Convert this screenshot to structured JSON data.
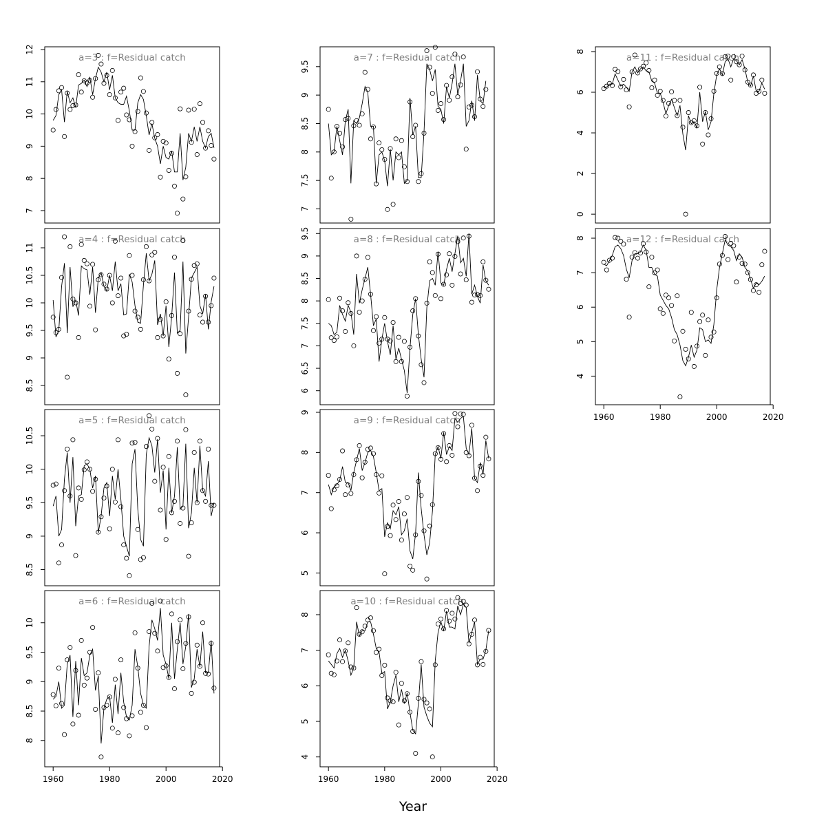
{
  "figure": {
    "xlabel": "Year"
  },
  "chart_data": [
    {
      "type": "scatter",
      "title": "a=3  :  f=Residual catch",
      "xlim": [
        1958,
        2018
      ],
      "ylim": [
        6.7,
        12.0
      ],
      "xticks": [],
      "yticks": [
        7,
        8,
        9,
        10,
        11,
        12
      ],
      "observed": [
        9.5,
        10.14,
        10.72,
        10.82,
        9.3,
        10.65,
        10.14,
        10.26,
        10.28,
        11.22,
        10.68,
        11.03,
        10.96,
        11.04,
        10.52,
        11.1,
        11.82,
        11.55,
        10.95,
        11.2,
        10.6,
        11.35,
        10.5,
        9.8,
        10.68,
        10.8,
        9.97,
        9.82,
        9.0,
        9.45,
        10.08,
        11.12,
        10.7,
        10.03,
        8.87,
        9.74,
        9.26,
        9.36,
        8.04,
        9.15,
        9.1,
        8.25,
        8.78,
        7.76,
        6.92,
        10.16,
        7.36,
        8.05,
        10.12,
        9.12,
        10.15,
        8.74,
        10.32,
        9.74,
        8.94,
        9.48,
        9.02,
        8.6
      ],
      "fitted": [
        9.8,
        9.95,
        10.6,
        10.75,
        9.75,
        10.7,
        10.35,
        10.5,
        10.2,
        10.9,
        10.95,
        11.05,
        10.85,
        11.15,
        10.6,
        11.1,
        11.45,
        11.3,
        11.0,
        11.3,
        10.75,
        11.2,
        10.5,
        10.35,
        10.3,
        10.3,
        10.55,
        10.1,
        9.5,
        9.5,
        10.35,
        10.6,
        10.45,
        9.95,
        9.35,
        9.7,
        9.25,
        9.0,
        8.45,
        9.0,
        8.65,
        8.6,
        8.85,
        8.2,
        8.2,
        9.4,
        7.95,
        8.35,
        9.4,
        9.15,
        9.6,
        9.15,
        9.6,
        9.15,
        8.95,
        9.3,
        9.4,
        8.95
      ]
    },
    {
      "type": "scatter",
      "title": "a=4  :  f=Residual catch",
      "xlim": [
        1958,
        2018
      ],
      "ylim": [
        8.2,
        11.3
      ],
      "xticks": [],
      "yticks": [
        8.5,
        9.0,
        9.5,
        10.0,
        10.5,
        11.0
      ],
      "observed": [
        9.74,
        9.46,
        9.52,
        10.46,
        11.2,
        8.65,
        11.02,
        10.07,
        10.0,
        9.37,
        11.06,
        10.77,
        10.71,
        9.94,
        10.7,
        9.51,
        10.42,
        10.51,
        10.34,
        10.25,
        10.5,
        10.0,
        11.12,
        10.13,
        10.45,
        9.4,
        9.43,
        10.86,
        10.5,
        9.85,
        9.74,
        9.52,
        10.42,
        11.02,
        10.4,
        10.87,
        10.92,
        9.37,
        9.7,
        9.4,
        10.02,
        8.98,
        9.77,
        10.83,
        8.72,
        9.44,
        11.13,
        8.33,
        9.85,
        10.43,
        10.68,
        10.71,
        9.78,
        9.65,
        10.12,
        9.65,
        9.95,
        10.45
      ],
      "fitted": [
        10.05,
        9.38,
        9.5,
        10.3,
        10.72,
        9.45,
        10.65,
        9.93,
        10.05,
        9.77,
        10.67,
        10.62,
        10.6,
        10.15,
        10.65,
        9.82,
        10.45,
        10.55,
        10.3,
        10.22,
        10.5,
        10.22,
        10.75,
        10.22,
        10.35,
        9.78,
        9.8,
        10.52,
        10.38,
        9.95,
        9.65,
        9.63,
        10.33,
        10.9,
        10.4,
        10.52,
        10.77,
        9.6,
        9.8,
        9.4,
        9.95,
        9.2,
        9.75,
        10.55,
        9.45,
        9.5,
        10.75,
        9.08,
        9.75,
        10.45,
        10.55,
        10.65,
        9.95,
        9.8,
        10.15,
        9.52,
        10.02,
        10.3
      ]
    },
    {
      "type": "scatter",
      "title": "a=5  :  f=Residual catch",
      "xlim": [
        1958,
        2018
      ],
      "ylim": [
        8.3,
        10.85
      ],
      "xticks": [],
      "yticks": [
        8.5,
        9.0,
        9.5,
        10.0,
        10.5
      ],
      "observed": [
        9.76,
        9.78,
        8.6,
        8.87,
        9.68,
        10.3,
        9.6,
        10.44,
        8.71,
        9.72,
        9.55,
        9.99,
        10.11,
        10.0,
        9.67,
        9.85,
        9.06,
        9.29,
        9.57,
        9.75,
        9.11,
        10.0,
        9.51,
        10.44,
        9.44,
        8.87,
        8.67,
        8.41,
        10.39,
        10.4,
        9.1,
        8.65,
        8.68,
        10.34,
        10.8,
        10.6,
        9.82,
        10.46,
        9.39,
        10.03,
        8.95,
        10.19,
        9.35,
        9.52,
        10.42,
        9.19,
        9.42,
        10.59,
        8.7,
        9.2,
        10.25,
        9.5,
        10.42,
        9.68,
        9.52,
        10.3,
        9.46,
        9.46
      ],
      "fitted": [
        9.45,
        9.6,
        9.0,
        9.1,
        9.85,
        10.25,
        9.5,
        10.18,
        9.15,
        9.6,
        9.62,
        10.05,
        10.08,
        10.0,
        9.72,
        9.9,
        9.05,
        9.3,
        9.72,
        9.8,
        9.3,
        9.9,
        9.55,
        10.0,
        9.55,
        9.0,
        8.85,
        8.7,
        10.08,
        10.3,
        9.4,
        8.95,
        8.85,
        10.22,
        10.47,
        10.35,
        9.95,
        10.45,
        9.65,
        9.98,
        9.1,
        10.02,
        9.35,
        9.6,
        10.33,
        9.4,
        9.45,
        10.38,
        9.12,
        9.35,
        10.02,
        9.5,
        10.35,
        9.68,
        9.6,
        10.12,
        9.3,
        9.5
      ]
    },
    {
      "type": "scatter",
      "title": "a=6  :  f=Residual catch",
      "xlim": [
        1958,
        2018
      ],
      "ylim": [
        7.6,
        10.5
      ],
      "xticks": [
        1960,
        1980,
        2000,
        2020
      ],
      "yticks": [
        8.0,
        8.5,
        9.0,
        9.5,
        10.0
      ],
      "observed": [
        8.78,
        8.59,
        9.23,
        8.63,
        8.1,
        9.37,
        9.58,
        8.28,
        9.19,
        8.43,
        9.7,
        8.94,
        9.06,
        9.5,
        9.92,
        8.53,
        9.15,
        7.72,
        8.56,
        8.6,
        8.74,
        8.21,
        9.04,
        8.13,
        9.37,
        8.56,
        8.37,
        8.08,
        8.42,
        9.83,
        9.23,
        8.48,
        8.6,
        8.22,
        9.85,
        10.33,
        9.82,
        9.52,
        10.37,
        9.24,
        9.27,
        9.07,
        10.15,
        8.88,
        9.68,
        10.05,
        9.22,
        9.65,
        10.1,
        8.8,
        8.99,
        9.62,
        9.26,
        10.0,
        9.14,
        9.13,
        9.65,
        8.89
      ],
      "fitted": [
        8.7,
        8.75,
        9.0,
        8.55,
        8.6,
        9.3,
        9.45,
        8.4,
        9.35,
        8.6,
        9.4,
        9.1,
        9.15,
        9.45,
        9.55,
        8.85,
        9.1,
        7.95,
        8.55,
        8.7,
        8.75,
        8.3,
        8.95,
        8.45,
        9.15,
        8.65,
        8.4,
        8.35,
        8.6,
        9.55,
        9.25,
        8.8,
        8.6,
        8.55,
        9.6,
        10.05,
        9.9,
        9.7,
        10.25,
        9.45,
        9.3,
        9.05,
        10.0,
        9.05,
        9.55,
        10.0,
        9.3,
        9.6,
        10.15,
        8.9,
        9.05,
        9.55,
        9.25,
        9.85,
        9.15,
        9.15,
        9.7,
        8.8
      ]
    },
    {
      "type": "scatter",
      "title": "a=7  :  f=Residual catch",
      "xlim": [
        1958,
        2018
      ],
      "ylim": [
        6.8,
        9.8
      ],
      "xticks": [],
      "yticks": [
        7.0,
        7.5,
        8.0,
        8.5,
        9.0,
        9.5
      ],
      "observed": [
        8.75,
        7.54,
        8.0,
        8.45,
        8.33,
        8.09,
        8.57,
        8.59,
        6.82,
        8.46,
        8.55,
        8.47,
        8.67,
        9.4,
        9.1,
        8.23,
        8.44,
        7.44,
        8.16,
        8.04,
        7.87,
        6.99,
        8.06,
        7.08,
        8.23,
        7.9,
        8.2,
        7.74,
        7.48,
        8.88,
        8.27,
        8.47,
        7.48,
        7.62,
        8.33,
        9.78,
        9.49,
        9.03,
        9.84,
        8.73,
        8.85,
        8.57,
        9.17,
        8.91,
        9.32,
        9.72,
        8.97,
        9.18,
        9.67,
        8.05,
        8.79,
        8.82,
        8.62,
        9.41,
        8.93,
        8.8,
        9.1
      ],
      "fitted": [
        8.5,
        7.95,
        8.0,
        8.45,
        8.2,
        7.95,
        8.55,
        8.75,
        7.45,
        8.55,
        8.5,
        8.6,
        8.85,
        9.15,
        9.05,
        8.45,
        8.45,
        7.45,
        7.95,
        8.0,
        7.85,
        7.4,
        8.05,
        7.5,
        8.0,
        7.95,
        8.0,
        7.45,
        7.5,
        8.95,
        8.3,
        8.45,
        7.55,
        7.55,
        8.35,
        9.55,
        9.45,
        9.25,
        9.45,
        8.8,
        8.75,
        8.5,
        9.15,
        8.95,
        9.2,
        9.55,
        9.0,
        9.25,
        9.55,
        8.45,
        8.55,
        8.9,
        8.55,
        9.35,
        8.9,
        8.85,
        9.25
      ]
    },
    {
      "type": "scatter",
      "title": "a=8  :  f=Residual catch",
      "xlim": [
        1958,
        2018
      ],
      "ylim": [
        5.75,
        9.55
      ],
      "xticks": [],
      "yticks": [
        6.0,
        6.5,
        7.0,
        7.5,
        8.0,
        8.5,
        9.0,
        9.5
      ],
      "observed": [
        8.03,
        7.18,
        7.12,
        7.2,
        8.06,
        7.78,
        7.32,
        7.96,
        7.72,
        7.0,
        9.0,
        7.75,
        8.0,
        8.48,
        8.97,
        8.15,
        7.34,
        7.65,
        7.06,
        7.15,
        7.63,
        7.15,
        7.11,
        7.52,
        6.65,
        7.19,
        6.65,
        7.1,
        5.88,
        6.97,
        7.78,
        8.05,
        7.22,
        6.58,
        6.18,
        7.95,
        8.87,
        8.63,
        8.12,
        9.04,
        8.05,
        8.37,
        8.58,
        9.05,
        8.35,
        8.99,
        9.32,
        8.6,
        9.4,
        8.47,
        9.44,
        7.97,
        8.13,
        8.14,
        8.12,
        8.87,
        8.46,
        8.26
      ],
      "fitted": [
        7.5,
        7.45,
        7.25,
        7.3,
        7.9,
        7.7,
        7.55,
        7.9,
        7.75,
        7.25,
        8.6,
        7.95,
        8.25,
        8.5,
        8.75,
        8.15,
        7.45,
        7.6,
        6.65,
        7.15,
        7.5,
        7.1,
        6.8,
        7.45,
        6.7,
        6.95,
        6.7,
        6.45,
        5.95,
        6.95,
        7.7,
        8.05,
        7.25,
        6.7,
        6.3,
        7.85,
        8.45,
        8.5,
        8.35,
        9.1,
        8.4,
        8.35,
        8.7,
        8.95,
        8.65,
        9.05,
        9.45,
        8.85,
        8.95,
        8.55,
        9.5,
        8.15,
        8.35,
        8.1,
        7.95,
        8.8,
        8.45,
        8.35
      ]
    },
    {
      "type": "scatter",
      "title": "a=9  :  f=Residual catch",
      "xlim": [
        1958,
        2018
      ],
      "ylim": [
        4.75,
        9.0
      ],
      "xticks": [],
      "yticks": [
        5,
        6,
        7,
        8,
        9
      ],
      "observed": [
        7.43,
        6.6,
        7.07,
        7.17,
        7.33,
        8.04,
        6.95,
        7.19,
        6.98,
        7.45,
        7.82,
        8.17,
        7.37,
        7.76,
        8.08,
        8.11,
        7.97,
        7.45,
        6.99,
        7.42,
        4.98,
        6.16,
        5.93,
        6.69,
        6.33,
        6.78,
        5.82,
        6.47,
        6.88,
        5.17,
        5.07,
        5.95,
        7.28,
        6.93,
        6.05,
        4.85,
        6.17,
        6.7,
        7.97,
        8.12,
        7.83,
        8.47,
        7.77,
        8.17,
        7.93,
        8.97,
        8.64,
        8.96,
        8.95,
        8.0,
        7.92,
        8.68,
        7.36,
        7.05,
        7.66,
        7.43,
        8.38,
        7.84
      ],
      "fitted": [
        7.2,
        6.95,
        7.15,
        7.2,
        7.3,
        7.65,
        7.25,
        7.25,
        7.05,
        7.5,
        7.8,
        8.1,
        7.55,
        7.75,
        8.0,
        8.05,
        7.9,
        7.5,
        7.05,
        7.1,
        5.9,
        6.25,
        6.1,
        6.55,
        6.45,
        6.65,
        5.95,
        6.05,
        6.35,
        5.55,
        5.35,
        6.0,
        7.5,
        6.6,
        5.95,
        5.45,
        5.75,
        6.55,
        7.95,
        8.15,
        7.85,
        8.5,
        7.95,
        8.15,
        8.05,
        8.85,
        8.75,
        8.85,
        8.9,
        8.1,
        7.95,
        8.6,
        7.35,
        7.25,
        7.75,
        7.45,
        8.3,
        7.85
      ]
    },
    {
      "type": "scatter",
      "title": "a=10  :  f=Residual catch",
      "xlim": [
        1958,
        2018
      ],
      "ylim": [
        3.8,
        8.6
      ],
      "xticks": [
        1960,
        1980,
        2000,
        2020
      ],
      "yticks": [
        4,
        5,
        6,
        7,
        8
      ],
      "observed": [
        6.87,
        6.35,
        6.31,
        6.7,
        7.29,
        6.68,
        6.98,
        7.21,
        6.53,
        6.5,
        8.2,
        7.45,
        7.52,
        7.68,
        7.85,
        7.91,
        7.55,
        6.94,
        7.03,
        6.29,
        6.58,
        5.66,
        5.58,
        5.55,
        6.38,
        4.9,
        6.07,
        5.58,
        5.78,
        5.26,
        4.72,
        4.1,
        5.65,
        6.68,
        5.62,
        5.52,
        5.35,
        4.0,
        6.59,
        7.74,
        7.88,
        7.6,
        8.12,
        7.82,
        8.04,
        7.88,
        8.48,
        8.32,
        8.38,
        8.27,
        7.18,
        7.45,
        7.85,
        6.59,
        6.8,
        6.6,
        6.97,
        7.56
      ],
      "fitted": [
        6.7,
        6.6,
        6.5,
        6.9,
        7.05,
        6.8,
        7.0,
        6.7,
        6.3,
        6.5,
        7.8,
        7.4,
        7.55,
        7.55,
        7.8,
        7.8,
        7.45,
        7.05,
        6.95,
        6.35,
        6.4,
        5.35,
        5.55,
        6.0,
        6.3,
        5.55,
        5.9,
        5.5,
        5.8,
        5.25,
        4.75,
        4.65,
        5.5,
        6.6,
        5.4,
        5.15,
        4.95,
        4.85,
        6.7,
        7.5,
        7.8,
        7.55,
        8.1,
        7.65,
        7.65,
        7.6,
        8.25,
        8.0,
        8.3,
        8.2,
        7.2,
        7.5,
        7.8,
        6.6,
        6.75,
        6.75,
        7.0,
        7.55
      ]
    },
    {
      "type": "scatter",
      "title": "a=11  :  f=Residual catch",
      "xlim": [
        1958,
        2018
      ],
      "ylim": [
        -0.3,
        8.1
      ],
      "xticks": [],
      "yticks": [
        0,
        2,
        4,
        6,
        8
      ],
      "observed": [
        6.18,
        6.3,
        6.43,
        6.33,
        7.13,
        7.02,
        6.27,
        6.63,
        6.12,
        5.28,
        7.0,
        7.83,
        6.95,
        7.15,
        7.28,
        7.45,
        7.07,
        6.22,
        6.6,
        5.85,
        6.05,
        5.6,
        4.83,
        5.45,
        6.02,
        5.6,
        4.85,
        5.6,
        4.28,
        0.0,
        5.0,
        4.5,
        4.6,
        4.35,
        6.25,
        3.45,
        5.0,
        3.9,
        4.7,
        6.05,
        6.93,
        7.25,
        6.92,
        7.75,
        7.78,
        6.6,
        7.75,
        7.5,
        7.35,
        7.78,
        7.1,
        6.5,
        6.35,
        6.85,
        5.95,
        6.05,
        6.6,
        5.95
      ],
      "fitted": [
        6.2,
        6.25,
        6.4,
        6.4,
        6.9,
        6.6,
        6.3,
        6.4,
        6.25,
        6.05,
        7.0,
        7.25,
        6.95,
        7.15,
        7.25,
        7.05,
        7.0,
        6.55,
        6.45,
        5.95,
        5.95,
        5.5,
        4.95,
        5.35,
        5.65,
        5.25,
        4.85,
        5.35,
        3.95,
        3.15,
        4.85,
        4.45,
        4.55,
        4.25,
        6.0,
        4.55,
        5.05,
        4.15,
        4.55,
        5.95,
        6.85,
        7.15,
        6.85,
        7.5,
        7.65,
        7.25,
        7.65,
        7.55,
        7.35,
        7.6,
        7.15,
        6.5,
        6.3,
        6.8,
        6.05,
        6.05,
        6.45,
        6.15
      ]
    },
    {
      "type": "scatter",
      "title": "a=12  :  f=Residual catch",
      "xlim": [
        1958,
        2018
      ],
      "ylim": [
        3.25,
        8.2
      ],
      "xticks": [
        1960,
        1980,
        2000,
        2020
      ],
      "yticks": [
        4,
        5,
        6,
        7,
        8
      ],
      "observed": [
        7.3,
        7.08,
        7.36,
        7.42,
        8.02,
        8.0,
        7.91,
        7.83,
        6.81,
        5.71,
        7.45,
        7.58,
        7.42,
        7.57,
        7.84,
        7.6,
        6.59,
        7.45,
        7.0,
        7.08,
        5.95,
        5.82,
        6.35,
        6.27,
        6.05,
        5.02,
        6.33,
        3.4,
        5.3,
        4.78,
        4.5,
        5.85,
        4.28,
        4.87,
        5.58,
        5.77,
        4.6,
        5.63,
        5.13,
        5.28,
        6.27,
        7.25,
        7.5,
        8.05,
        7.38,
        7.85,
        7.78,
        6.73,
        7.45,
        7.27,
        7.25,
        7.0,
        6.8,
        6.48,
        6.65,
        6.43,
        7.23,
        7.62
      ],
      "fitted": [
        7.25,
        7.2,
        7.35,
        7.5,
        7.75,
        7.8,
        7.7,
        7.5,
        7.1,
        6.85,
        7.35,
        7.55,
        7.55,
        7.6,
        7.8,
        7.65,
        7.15,
        7.15,
        6.95,
        6.9,
        6.35,
        6.2,
        6.05,
        5.95,
        5.7,
        5.35,
        5.2,
        4.9,
        4.45,
        4.3,
        4.55,
        4.9,
        4.55,
        4.75,
        5.4,
        5.35,
        5.0,
        5.05,
        4.95,
        5.5,
        6.5,
        7.15,
        7.55,
        7.95,
        7.8,
        7.75,
        7.65,
        7.35,
        7.55,
        7.45,
        7.15,
        7.05,
        6.8,
        6.55,
        6.7,
        6.65,
        6.75,
        6.9
      ]
    }
  ]
}
